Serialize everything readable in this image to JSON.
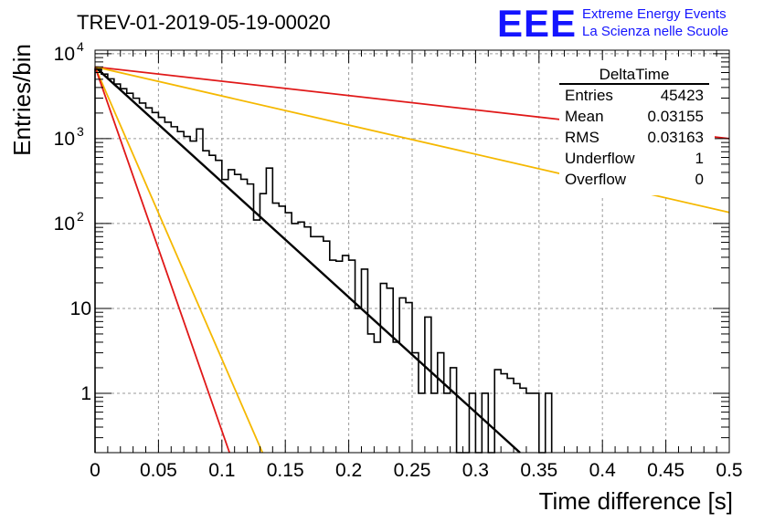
{
  "header": {
    "run_title": "TREV-01-2019-05-19-00020",
    "logo_text": "EEE",
    "logo_line1": "Extreme Energy Events",
    "logo_line2": "La Scienza nelle Scuole",
    "logo_color": "#1414ff"
  },
  "stats_box": {
    "title": "DeltaTime",
    "rows": [
      {
        "label": "Entries",
        "value": "45423"
      },
      {
        "label": "Mean",
        "value": "0.03155"
      },
      {
        "label": "RMS",
        "value": "0.03163"
      },
      {
        "label": "Underflow",
        "value": "1"
      },
      {
        "label": "Overflow",
        "value": "0"
      }
    ]
  },
  "chart_data": {
    "type": "histogram",
    "title": "TREV-01-2019-05-19-00020",
    "xlabel": "Time difference [s]",
    "ylabel": "Entries/bin",
    "xlim": [
      0,
      0.5
    ],
    "ylim": [
      0.2,
      11000
    ],
    "y_scale": "log",
    "grid": true,
    "x_ticks": [
      "0",
      "0.05",
      "0.1",
      "0.15",
      "0.2",
      "0.25",
      "0.3",
      "0.35",
      "0.4",
      "0.45",
      "0.5"
    ],
    "y_ticks": [
      {
        "value": 1,
        "label": "1"
      },
      {
        "value": 10,
        "label": "10"
      },
      {
        "value": 100,
        "label": "10",
        "exp": "2"
      },
      {
        "value": 1000,
        "label": "10",
        "exp": "3"
      },
      {
        "value": 10000,
        "label": "10",
        "exp": "4"
      }
    ],
    "histogram": {
      "bin_width": 0.005,
      "color": "#000000",
      "counts": [
        6600,
        5750,
        5060,
        4400,
        3870,
        3420,
        2990,
        2620,
        2300,
        2030,
        1780,
        1560,
        1380,
        1210,
        1060,
        935,
        820,
        720,
        635,
        555,
        490,
        430,
        378,
        332,
        292,
        256,
        225,
        198,
        174,
        153,
        134,
        118,
        104,
        91,
        80,
        70,
        62,
        55,
        48,
        42,
        37,
        33,
        29,
        25.5,
        22.4,
        19.7,
        17.3,
        15.2,
        13.3,
        11.7,
        10.3,
        9,
        7.9,
        7,
        6.1,
        5.4,
        4.7,
        4.2,
        3.7,
        3.2,
        2.8,
        2.5,
        2.2,
        1.9,
        1.7,
        1.5,
        1.3,
        1.15,
        1,
        0.88,
        0.77,
        0.68
      ],
      "tail": [
        {
          "x": 0.08,
          "y": 1300
        },
        {
          "x": 0.1,
          "y": 330
        },
        {
          "x": 0.125,
          "y": 110
        },
        {
          "x": 0.135,
          "y": 450
        },
        {
          "x": 0.145,
          "y": 160
        },
        {
          "x": 0.155,
          "y": 100
        },
        {
          "x": 0.17,
          "y": 70
        },
        {
          "x": 0.185,
          "y": 37
        },
        {
          "x": 0.19,
          "y": 36
        },
        {
          "x": 0.205,
          "y": 10
        },
        {
          "x": 0.215,
          "y": 5
        },
        {
          "x": 0.22,
          "y": 4
        },
        {
          "x": 0.235,
          "y": 4
        },
        {
          "x": 0.25,
          "y": 3
        },
        {
          "x": 0.255,
          "y": 1
        },
        {
          "x": 0.265,
          "y": 1
        },
        {
          "x": 0.27,
          "y": 3
        },
        {
          "x": 0.275,
          "y": 1
        },
        {
          "x": 0.28,
          "y": 2
        },
        {
          "x": 0.285,
          "y": 0.2
        },
        {
          "x": 0.29,
          "y": 0.2
        },
        {
          "x": 0.295,
          "y": 1
        },
        {
          "x": 0.3,
          "y": 0.2
        },
        {
          "x": 0.305,
          "y": 1
        },
        {
          "x": 0.31,
          "y": 0.2
        },
        {
          "x": 0.345,
          "y": 1
        },
        {
          "x": 0.35,
          "y": 0.2
        },
        {
          "x": 0.355,
          "y": 1
        }
      ]
    },
    "curves": [
      {
        "color": "#000000",
        "x0": 0,
        "y0": 7000,
        "x1": 0.335,
        "y1": 0.2
      },
      {
        "color": "#e01818",
        "x0": 0,
        "y0": 7000,
        "x1": 0.5,
        "y1": 1000
      },
      {
        "color": "#f5b800",
        "x0": 0,
        "y0": 7000,
        "x1": 0.5,
        "y1": 135
      },
      {
        "color": "#f5b800",
        "x0": 0,
        "y0": 7000,
        "x1": 0.132,
        "y1": 0.2
      },
      {
        "color": "#e01818",
        "x0": 0,
        "y0": 7000,
        "x1": 0.106,
        "y1": 0.2
      }
    ]
  }
}
